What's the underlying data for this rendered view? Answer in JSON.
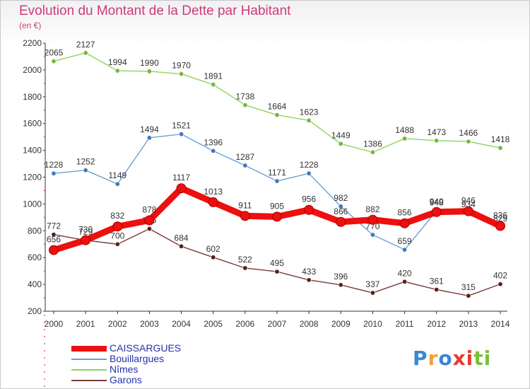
{
  "title": "Evolution du Montant de la Dette par Habitant",
  "unit_label": "(en €)",
  "logo_text": [
    "P",
    "r",
    "o",
    "x",
    "i",
    "t",
    "i"
  ],
  "logo_colors": [
    "#3a86d6",
    "#f2a03c",
    "#3a86d6",
    "#e63a2e",
    "#e63a2e",
    "#7bbf3a",
    "#7bbf3a"
  ],
  "chart_data": {
    "type": "line",
    "x": [
      "2000",
      "2001",
      "2002",
      "2003",
      "2004",
      "2005",
      "2006",
      "2007",
      "2008",
      "2009",
      "2010",
      "2011",
      "2012",
      "2013",
      "2014"
    ],
    "ylim": [
      200,
      2200
    ],
    "yticks": [
      200,
      400,
      600,
      800,
      1000,
      1200,
      1400,
      1600,
      1800,
      2000,
      2200
    ],
    "grid": false,
    "legend_position": "bottom-left",
    "series": [
      {
        "name": "Nîmes",
        "color": "#8fd45c",
        "marker": "#6fba3d",
        "values": [
          2065,
          2127,
          1994,
          1990,
          1970,
          1891,
          1738,
          1664,
          1623,
          1449,
          1386,
          1488,
          1473,
          1466,
          1418
        ]
      },
      {
        "name": "Bouillargues",
        "color": "#6a9fd8",
        "marker": "#3f78c0",
        "values": [
          1228,
          1252,
          1149,
          1494,
          1521,
          1396,
          1287,
          1171,
          1228,
          982,
          770,
          659,
          948,
          934,
          829
        ]
      },
      {
        "name": "Garons",
        "color": "#7a3a38",
        "marker": "#5a1e1c",
        "values": [
          772,
          729,
          700,
          815,
          684,
          602,
          522,
          495,
          433,
          396,
          337,
          420,
          361,
          315,
          402
        ]
      },
      {
        "name": "CAISSARGUES",
        "color": "#ee0f0f",
        "marker": "#ee0f0f",
        "values": [
          656,
          730,
          832,
          878,
          1117,
          1013,
          911,
          905,
          956,
          866,
          882,
          856,
          940,
          946,
          836
        ]
      }
    ],
    "point_labels": {
      "Nîmes": [
        "2065",
        "2127",
        "1994",
        "1990",
        "1970",
        "1891",
        "1738",
        "1664",
        "1623",
        "1449",
        "1386",
        "1488",
        "1473",
        "1466",
        "1418"
      ],
      "Bouillargues": [
        "1228",
        "1252",
        "1149",
        "1494",
        "1521",
        "1396",
        "1287",
        "1171",
        "1228",
        "982",
        "770",
        "659",
        "948",
        "934",
        "829"
      ],
      "Garons": [
        "772",
        "729",
        "700",
        "815",
        "684",
        "602",
        "522",
        "495",
        "433",
        "396",
        "337",
        "420",
        "361",
        "315",
        "402"
      ],
      "CAISSARGUES": [
        "656",
        "730",
        "832",
        "878",
        "1117",
        "1013",
        "911",
        "905",
        "956",
        "866",
        "882",
        "856",
        "940",
        "946",
        "836"
      ]
    }
  },
  "legend": [
    {
      "label": "CAISSARGUES",
      "color": "#ee0f0f",
      "thickness": 8
    },
    {
      "label": "Bouillargues",
      "color": "#6a9fd8",
      "thickness": 2
    },
    {
      "label": "Nîmes",
      "color": "#8fd45c",
      "thickness": 2
    },
    {
      "label": "Garons",
      "color": "#7a3a38",
      "thickness": 2
    }
  ]
}
